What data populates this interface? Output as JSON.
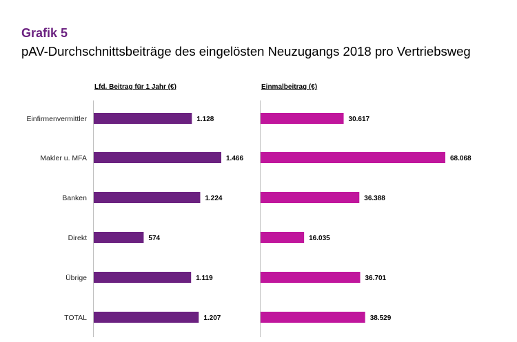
{
  "header": {
    "label": "Grafik 5",
    "title": "pAV-Durchschnittsbeiträge des eingelösten Neuzugangs 2018 pro Vertriebsweg"
  },
  "chart_data": {
    "type": "bar",
    "orientation": "horizontal",
    "categories": [
      "Einfirmenvermittler",
      "Makler u. MFA",
      "Banken",
      "Direkt",
      "Übrige",
      "TOTAL"
    ],
    "panels": [
      {
        "title": "Lfd. Beitrag für 1 Jahr (€)",
        "color": "#6b2180",
        "values": [
          1128,
          1466,
          1224,
          574,
          1119,
          1207
        ],
        "labels": [
          "1.128",
          "1.466",
          "1.224",
          "574",
          "1.119",
          "1.207"
        ]
      },
      {
        "title": "Einmalbeitrag (€)",
        "color": "#c0169c",
        "values": [
          30617,
          68068,
          36388,
          16035,
          36701,
          38529
        ],
        "labels": [
          "30.617",
          "68.068",
          "36.388",
          "16.035",
          "36.701",
          "38.529"
        ]
      }
    ],
    "legend": "none",
    "grid": false
  }
}
